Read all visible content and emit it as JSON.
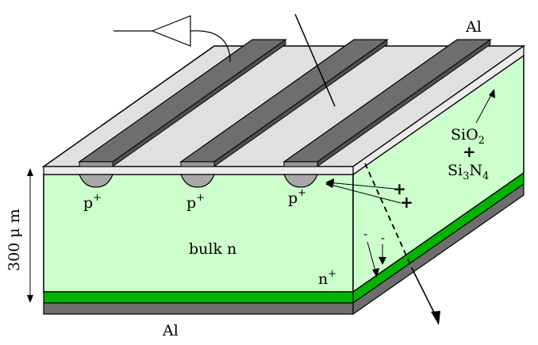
{
  "diagram": {
    "labels": {
      "al_top": "Al",
      "al_bottom": "Al",
      "oxide": "SiO",
      "oxide_sub": "2",
      "plus_sign": "+",
      "nitride_si": "Si",
      "nitride_si_sub": "3",
      "nitride_n": "N",
      "nitride_n_sub": "4",
      "p_plus_1": "p",
      "p_plus_2": "p",
      "p_plus_3": "p",
      "p_sup": "+",
      "bulk": "bulk n",
      "n_plus": "n",
      "n_plus_sup": "+",
      "thickness": "300 μ m",
      "hole_1": "+",
      "hole_2": "+",
      "electron_1": "-",
      "electron_2": "-"
    },
    "colors": {
      "bulk": "#ccffcc",
      "oxide_surface": "#e0e0e0",
      "strip_top": "#6e6e6e",
      "strip_front": "#9a9a9a",
      "implant": "#a8a8a8",
      "n_plus_layer": "#00b400",
      "back_metal": "#6e6e6e",
      "outline": "#000000"
    }
  }
}
